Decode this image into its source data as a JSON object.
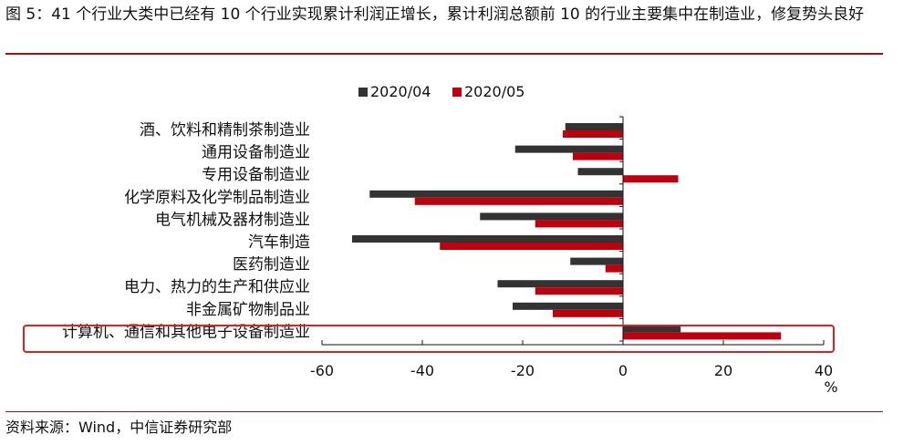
{
  "title": "图 5：41 个行业大类中已经有 10 个行业实现累计利润正增长，累计利润总额前 10 的行业主要集中在制造业，修复势头良好",
  "source": "资料来源：Wind，中信证券研究部",
  "chart_data": {
    "type": "bar",
    "orientation": "horizontal",
    "categories": [
      "酒、饮料和精制茶制造业",
      "通用设备制造业",
      "专用设备制造业",
      "化学原料及化学制品制造业",
      "电气机械及器材制造业",
      "汽车制造",
      "医药制造业",
      "电力、热力的生产和供应业",
      "非金属矿物制品业",
      "计算机、通信和其他电子设备制造业"
    ],
    "series": [
      {
        "name": "2020/04",
        "color": "#333333",
        "values": [
          -11.5,
          -21.5,
          -9,
          -50.5,
          -28.5,
          -54,
          -10.5,
          -25,
          -22,
          11.5
        ]
      },
      {
        "name": "2020/05",
        "color": "#c0000c",
        "values": [
          -12,
          -10,
          11,
          -41.5,
          -17.5,
          -36.5,
          -3.5,
          -17.5,
          -14,
          31.5
        ]
      }
    ],
    "xlim": [
      -60,
      40
    ],
    "xticks": [
      -60,
      -40,
      -20,
      0,
      20,
      40
    ],
    "xlabel": "%",
    "legend_position": "top",
    "highlight_category": "计算机、通信和其他电子设备制造业",
    "highlight_color": "#e02020"
  }
}
